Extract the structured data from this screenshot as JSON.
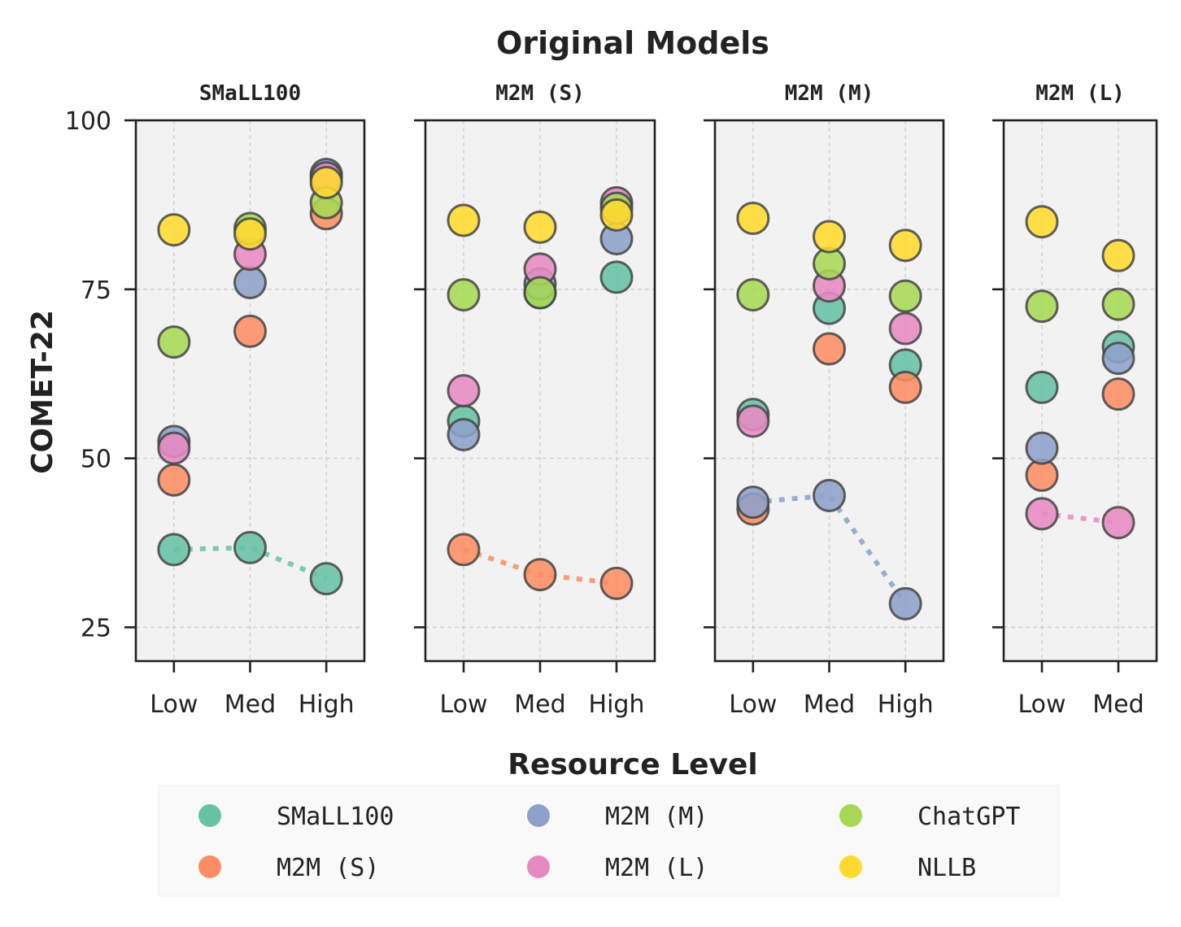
{
  "chart_data": {
    "type": "scatter",
    "title": "Original Models",
    "xlabel": "Resource Level",
    "ylabel": "COMET-22",
    "ylim": [
      20,
      100
    ],
    "yticks": [
      25,
      50,
      75,
      100
    ],
    "grid": true,
    "legend_position": "bottom",
    "series_info": [
      {
        "name": "SMaLL100",
        "color": "#66c2a5"
      },
      {
        "name": "M2M (S)",
        "color": "#fc8d62"
      },
      {
        "name": "M2M (M)",
        "color": "#8da0cb"
      },
      {
        "name": "M2M (L)",
        "color": "#e78ac3"
      },
      {
        "name": "ChatGPT",
        "color": "#a6d854"
      },
      {
        "name": "NLLB",
        "color": "#ffd92f"
      }
    ],
    "panels": [
      {
        "title": "SMaLL100",
        "categories": [
          "Low",
          "Med",
          "High"
        ],
        "highlight": "SMaLL100",
        "values": {
          "SMaLL100": [
            36.5,
            36.8,
            32.2
          ],
          "M2M (S)": [
            46.8,
            68.8,
            86.2
          ],
          "M2M (M)": [
            52.5,
            76.0,
            92.0
          ],
          "M2M (L)": [
            51.5,
            80.2,
            91.5
          ],
          "ChatGPT": [
            67.2,
            84.0,
            87.8
          ],
          "NLLB": [
            83.8,
            83.2,
            90.8
          ]
        }
      },
      {
        "title": "M2M (S)",
        "categories": [
          "Low",
          "Med",
          "High"
        ],
        "highlight": "M2M (S)",
        "values": {
          "SMaLL100": [
            55.5,
            74.5,
            76.8
          ],
          "M2M (S)": [
            36.5,
            32.8,
            31.5
          ],
          "M2M (M)": [
            53.5,
            75.8,
            82.5
          ],
          "M2M (L)": [
            60.0,
            78.0,
            87.8
          ],
          "ChatGPT": [
            74.2,
            74.5,
            87.0
          ],
          "NLLB": [
            85.2,
            84.2,
            86.0
          ]
        }
      },
      {
        "title": "M2M (M)",
        "categories": [
          "Low",
          "Med",
          "High"
        ],
        "highlight": "M2M (M)",
        "values": {
          "SMaLL100": [
            56.5,
            72.2,
            63.8
          ],
          "M2M (S)": [
            42.5,
            66.2,
            60.5
          ],
          "M2M (M)": [
            43.5,
            44.5,
            28.5
          ],
          "M2M (L)": [
            55.5,
            75.5,
            69.2
          ],
          "ChatGPT": [
            74.2,
            78.8,
            74.0
          ],
          "NLLB": [
            85.5,
            82.8,
            81.5
          ]
        }
      },
      {
        "title": "M2M (L)",
        "categories": [
          "Low",
          "Med"
        ],
        "highlight": "M2M (L)",
        "values": {
          "SMaLL100": [
            60.5,
            66.5
          ],
          "M2M (S)": [
            47.5,
            59.5
          ],
          "M2M (M)": [
            51.5,
            64.8
          ],
          "M2M (L)": [
            41.8,
            40.5
          ],
          "ChatGPT": [
            72.5,
            72.8
          ],
          "NLLB": [
            85.0,
            80.0
          ]
        }
      }
    ]
  }
}
